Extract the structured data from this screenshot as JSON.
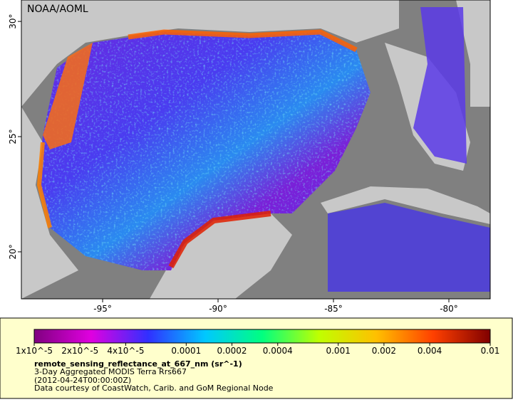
{
  "map": {
    "label": "NOAA/AOML",
    "xlim": [
      -98.52,
      -78.21
    ],
    "ylim": [
      17.96,
      30.93
    ],
    "lon_ticks": [
      {
        "value": -95,
        "label": "-95°"
      },
      {
        "value": -90,
        "label": "-90°"
      },
      {
        "value": -85,
        "label": "-85°"
      },
      {
        "value": -80,
        "label": "-80°"
      }
    ],
    "lat_ticks": [
      {
        "value": 30,
        "label": "30°"
      },
      {
        "value": 25,
        "label": "25°"
      },
      {
        "value": 20,
        "label": "20°"
      }
    ]
  },
  "legend": {
    "colorbar": {
      "scale": "log",
      "lim": [
        1e-05,
        0.01
      ],
      "colors": [
        "#800080",
        "#e000e0",
        "#3030ff",
        "#00c8ff",
        "#00ff80",
        "#c0ff00",
        "#ffc000",
        "#ff4000",
        "#800000"
      ],
      "ticks": [
        {
          "value": 1e-05,
          "label": "1x10^-5"
        },
        {
          "value": 2e-05,
          "label": "2x10^-5"
        },
        {
          "value": 4e-05,
          "label": "4x10^-5"
        },
        0.0001,
        0.0002,
        0.0004,
        0.001,
        0.002,
        0.004,
        0.01
      ]
    },
    "variable": "remote_sensing_reflectance_at_667_nm (sr^-1)",
    "lines": [
      "3-Day Aggregated MODIS Terra Rrs667",
      "(2012-04-24T00:00:00Z)",
      "Data courtesy of CoastWatch, Carib. and GoM Regional Node"
    ]
  }
}
